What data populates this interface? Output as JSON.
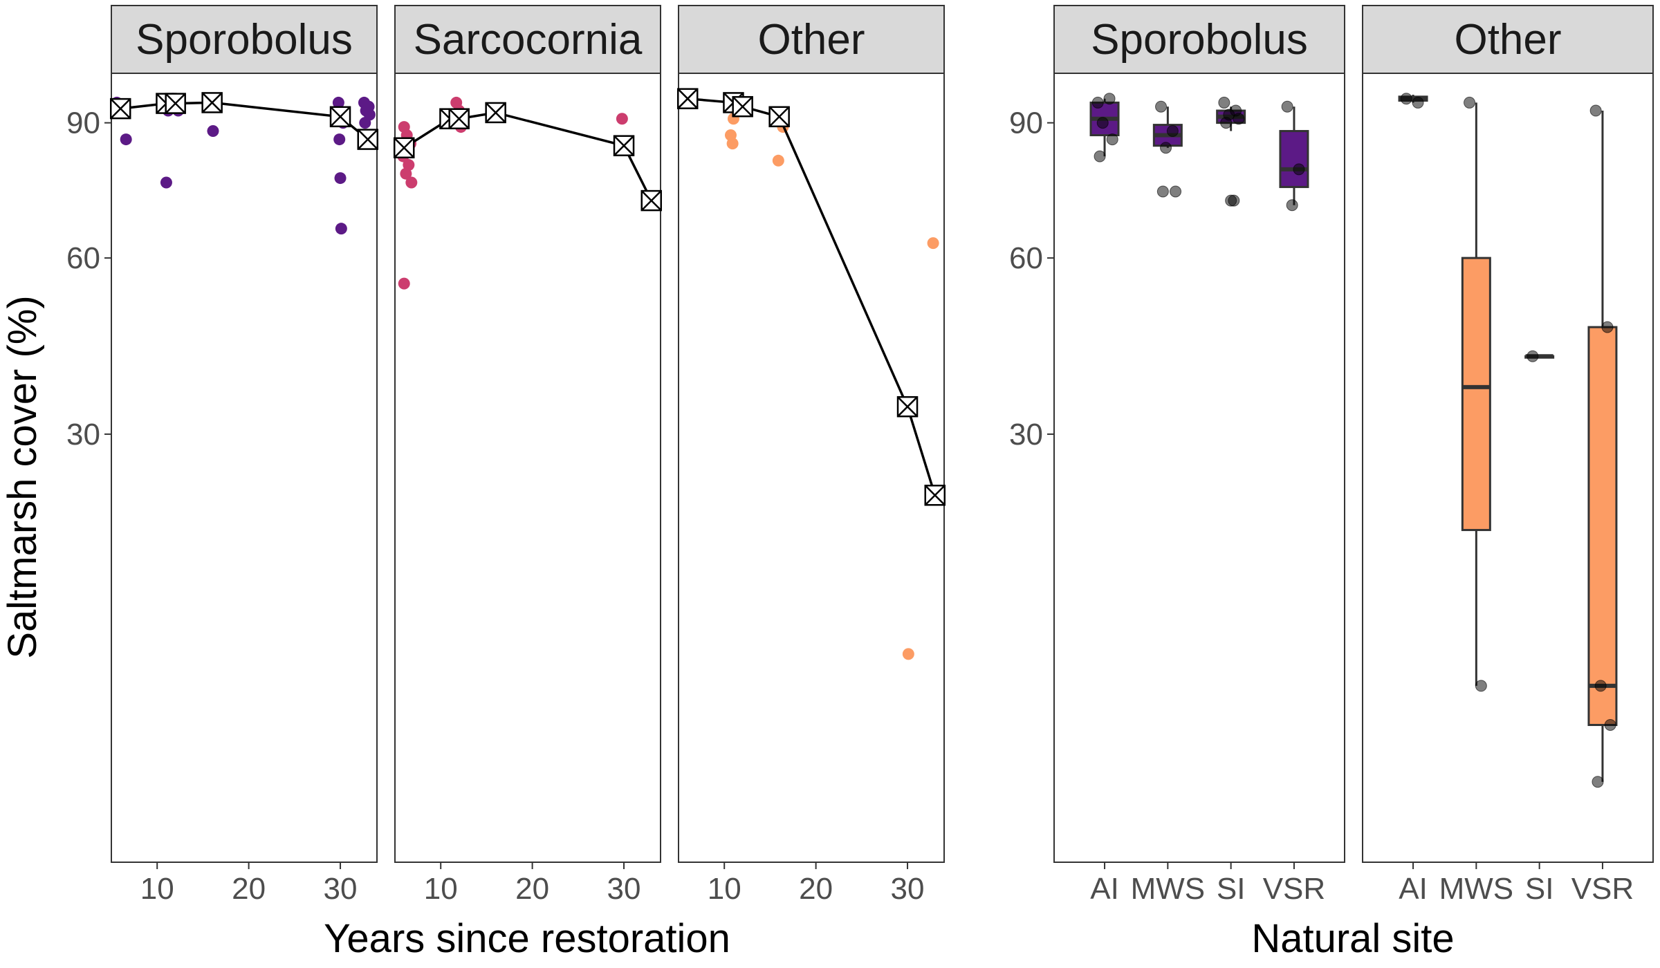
{
  "chart_data": {
    "type": "scatter",
    "ylabel": "Saltmarsh cover (%)",
    "xlabel_restored": "Years since restoration",
    "xlabel_natural": "Natural site",
    "y_scale": "sqrt",
    "ylim": [
      0,
      100
    ],
    "y_ticks": [
      30,
      60,
      90
    ],
    "grid": false,
    "colors": {
      "Sporobolus": "#5c1a86",
      "Sarcocornia": "#cc3d6e",
      "Other": "#fc9c64"
    },
    "restored_panels": [
      {
        "label": "Sporobolus",
        "color": "#5c1a86",
        "xlim": [
          5,
          34
        ],
        "x_ticks": [
          10,
          20,
          30
        ],
        "points": [
          {
            "x": 5.6,
            "y": 95
          },
          {
            "x": 5.9,
            "y": 93
          },
          {
            "x": 6.3,
            "y": 94
          },
          {
            "x": 6.6,
            "y": 86
          },
          {
            "x": 10.8,
            "y": 95
          },
          {
            "x": 11.0,
            "y": 94
          },
          {
            "x": 11.2,
            "y": 93
          },
          {
            "x": 11.0,
            "y": 76
          },
          {
            "x": 11.7,
            "y": 96
          },
          {
            "x": 11.9,
            "y": 94
          },
          {
            "x": 12.3,
            "y": 93
          },
          {
            "x": 15.8,
            "y": 95
          },
          {
            "x": 16.3,
            "y": 95
          },
          {
            "x": 16.1,
            "y": 88
          },
          {
            "x": 29.8,
            "y": 95
          },
          {
            "x": 30.0,
            "y": 92
          },
          {
            "x": 30.3,
            "y": 90
          },
          {
            "x": 29.9,
            "y": 86
          },
          {
            "x": 30.0,
            "y": 77
          },
          {
            "x": 30.1,
            "y": 66
          },
          {
            "x": 32.6,
            "y": 95
          },
          {
            "x": 33.1,
            "y": 94
          },
          {
            "x": 32.8,
            "y": 93
          },
          {
            "x": 33.2,
            "y": 92
          },
          {
            "x": 32.7,
            "y": 90
          }
        ],
        "means": [
          {
            "x": 6,
            "y": 93.5
          },
          {
            "x": 11,
            "y": 94.8
          },
          {
            "x": 12,
            "y": 94.8
          },
          {
            "x": 16,
            "y": 95
          },
          {
            "x": 30,
            "y": 91.5
          },
          {
            "x": 33,
            "y": 86
          }
        ]
      },
      {
        "label": "Sarcocornia",
        "color": "#cc3d6e",
        "xlim": [
          5,
          34
        ],
        "x_ticks": [
          10,
          20,
          30
        ],
        "points": [
          {
            "x": 6.0,
            "y": 89
          },
          {
            "x": 6.3,
            "y": 87
          },
          {
            "x": 6.7,
            "y": 85
          },
          {
            "x": 5.9,
            "y": 82
          },
          {
            "x": 6.5,
            "y": 80
          },
          {
            "x": 6.2,
            "y": 78
          },
          {
            "x": 6.8,
            "y": 76
          },
          {
            "x": 6.0,
            "y": 55
          },
          {
            "x": 11.7,
            "y": 95
          },
          {
            "x": 12.0,
            "y": 93
          },
          {
            "x": 11.8,
            "y": 91
          },
          {
            "x": 12.2,
            "y": 89
          },
          {
            "x": 29.8,
            "y": 91
          }
        ],
        "means": [
          {
            "x": 6,
            "y": 84
          },
          {
            "x": 11,
            "y": 91
          },
          {
            "x": 12,
            "y": 91
          },
          {
            "x": 16,
            "y": 92.5
          },
          {
            "x": 30,
            "y": 84.5
          },
          {
            "x": 33,
            "y": 72
          }
        ]
      },
      {
        "label": "Other",
        "color": "#fc9c64",
        "xlim": [
          5,
          34
        ],
        "x_ticks": [
          10,
          20,
          30
        ],
        "points": [
          {
            "x": 11.0,
            "y": 91
          },
          {
            "x": 10.7,
            "y": 87
          },
          {
            "x": 10.9,
            "y": 85
          },
          {
            "x": 16.4,
            "y": 89
          },
          {
            "x": 15.9,
            "y": 81
          },
          {
            "x": 32.8,
            "y": 63
          },
          {
            "x": 30.1,
            "y": 7
          }
        ],
        "means": [
          {
            "x": 6,
            "y": 96
          },
          {
            "x": 11,
            "y": 95
          },
          {
            "x": 12,
            "y": 94
          },
          {
            "x": 16,
            "y": 91.5
          },
          {
            "x": 30,
            "y": 34
          },
          {
            "x": 33,
            "y": 22
          }
        ]
      }
    ],
    "natural_panels": [
      {
        "label": "Sporobolus",
        "color": "#5c1a86",
        "categories": [
          "AI",
          "MWS",
          "SI",
          "VSR"
        ],
        "boxes": [
          {
            "category": "AI",
            "min": 82,
            "q1": 87,
            "median": 91,
            "q3": 95,
            "max": 96
          },
          {
            "category": "MWS",
            "min": 84,
            "q1": 84.5,
            "median": 87,
            "q3": 89.5,
            "max": 94
          },
          {
            "category": "SI",
            "min": 88,
            "q1": 90,
            "median": 91.5,
            "q3": 93,
            "max": 94
          },
          {
            "category": "VSR",
            "min": 71,
            "q1": 75,
            "median": 79,
            "q3": 88,
            "max": 94
          }
        ],
        "points": [
          {
            "category": "AI",
            "y": 95
          },
          {
            "category": "AI",
            "y": 96
          },
          {
            "category": "AI",
            "y": 90
          },
          {
            "category": "AI",
            "y": 86
          },
          {
            "category": "AI",
            "y": 82
          },
          {
            "category": "MWS",
            "y": 94
          },
          {
            "category": "MWS",
            "y": 88
          },
          {
            "category": "MWS",
            "y": 84
          },
          {
            "category": "MWS",
            "y": 74
          },
          {
            "category": "MWS",
            "y": 74
          },
          {
            "category": "SI",
            "y": 95
          },
          {
            "category": "SI",
            "y": 93
          },
          {
            "category": "SI",
            "y": 92
          },
          {
            "category": "SI",
            "y": 91
          },
          {
            "category": "SI",
            "y": 90
          },
          {
            "category": "SI",
            "y": 72
          },
          {
            "category": "SI",
            "y": 72
          },
          {
            "category": "VSR",
            "y": 94
          },
          {
            "category": "VSR",
            "y": 79
          },
          {
            "category": "VSR",
            "y": 71
          }
        ]
      },
      {
        "label": "Other",
        "color": "#fc9c64",
        "categories": [
          "AI",
          "MWS",
          "SI",
          "VSR"
        ],
        "boxes": [
          {
            "category": "AI",
            "min": 95,
            "q1": 95.5,
            "median": 96,
            "q3": 96.5,
            "max": 97
          },
          {
            "category": "MWS",
            "min": 5,
            "q1": 18,
            "median": 37,
            "q3": 60,
            "max": 95
          },
          {
            "category": "SI",
            "min": 42,
            "q1": 42,
            "median": 42,
            "q3": 42,
            "max": 42
          },
          {
            "category": "VSR",
            "min": 1,
            "q1": 3,
            "median": 5,
            "q3": 47,
            "max": 93
          }
        ],
        "points": [
          {
            "category": "AI",
            "y": 96
          },
          {
            "category": "AI",
            "y": 95
          },
          {
            "category": "MWS",
            "y": 95
          },
          {
            "category": "MWS",
            "y": 5
          },
          {
            "category": "SI",
            "y": 42
          },
          {
            "category": "VSR",
            "y": 93
          },
          {
            "category": "VSR",
            "y": 47
          },
          {
            "category": "VSR",
            "y": 5
          },
          {
            "category": "VSR",
            "y": 3
          },
          {
            "category": "VSR",
            "y": 1
          }
        ]
      }
    ]
  }
}
